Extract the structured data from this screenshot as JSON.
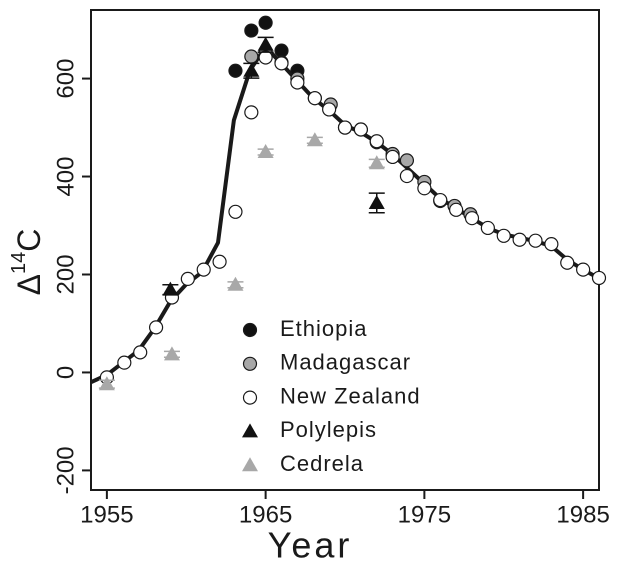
{
  "chart_data": {
    "type": "scatter",
    "x_label": "Year",
    "y_label": [
      "Δ",
      "14",
      "C"
    ],
    "xlim": [
      1954,
      1986
    ],
    "ylim": [
      -240,
      740
    ],
    "xticks": [
      1955,
      1965,
      1975,
      1985
    ],
    "yticks": [
      -200,
      0,
      200,
      400,
      600
    ],
    "curve": {
      "color": "#1a1a1a",
      "x": [
        1954,
        1955,
        1956,
        1957,
        1958,
        1959,
        1960,
        1961,
        1962,
        1963,
        1964,
        1965,
        1966,
        1967,
        1968,
        1969,
        1970,
        1971,
        1972,
        1973,
        1974,
        1975,
        1976,
        1977,
        1978,
        1979,
        1980,
        1981,
        1982,
        1983,
        1984,
        1985,
        1986
      ],
      "values": [
        -20,
        -5,
        20,
        45,
        90,
        145,
        180,
        205,
        265,
        515,
        616,
        665,
        630,
        595,
        560,
        535,
        505,
        490,
        470,
        445,
        415,
        385,
        355,
        335,
        315,
        295,
        282,
        275,
        268,
        258,
        230,
        210,
        192
      ]
    },
    "series": [
      {
        "name": "Ethiopia",
        "marker": "circle",
        "color": "#111111",
        "x": [
          1963.1,
          1964.1,
          1965.0,
          1966.0,
          1967.0
        ],
        "values": [
          616,
          698,
          714,
          657,
          616
        ]
      },
      {
        "name": "Madagascar",
        "marker": "circle",
        "color": "#a8a8a8",
        "x": [
          1964.1,
          1965.0,
          1966.0,
          1967.0,
          1968.1,
          1969.1,
          1970.0,
          1971.0,
          1972.0,
          1973.0,
          1973.9,
          1975.0,
          1976.0,
          1976.9,
          1977.9
        ],
        "values": [
          645,
          653,
          633,
          600,
          560,
          547,
          500,
          496,
          470,
          446,
          433,
          389,
          350,
          340,
          323
        ]
      },
      {
        "name": "New Zealand",
        "marker": "circle",
        "color": "#ffffff",
        "x": [
          1955.0,
          1956.1,
          1957.1,
          1958.1,
          1959.1,
          1960.1,
          1961.1,
          1962.1,
          1963.1,
          1964.1,
          1965.0,
          1966.0,
          1967.0,
          1968.1,
          1969.0,
          1970.0,
          1971.0,
          1972.0,
          1973.0,
          1973.9,
          1975.0,
          1976.0,
          1977.0,
          1978.0,
          1979.0,
          1980.0,
          1981.0,
          1982.0,
          1983.0,
          1984.0,
          1985.0,
          1986.0
        ],
        "values": [
          -10,
          20,
          41,
          92,
          153,
          191,
          210,
          226,
          328,
          531,
          643,
          631,
          592,
          560,
          537,
          500,
          496,
          472,
          440,
          401,
          376,
          352,
          332,
          315,
          295,
          279,
          271,
          269,
          262,
          224,
          210,
          193
        ]
      },
      {
        "name": "Polylepis",
        "marker": "triangle",
        "color": "#111111",
        "x": [
          1959.0,
          1964.1,
          1965.0,
          1972.0
        ],
        "values": [
          169,
          616,
          669,
          346
        ],
        "errors": [
          10,
          15,
          15,
          20
        ]
      },
      {
        "name": "Cedrela",
        "marker": "triangle",
        "color": "#a8a8a8",
        "x": [
          1955.0,
          1959.1,
          1963.1,
          1965.0,
          1968.1,
          1972.0
        ],
        "values": [
          -24,
          37,
          179,
          450,
          474,
          427
        ],
        "errors": [
          8,
          6,
          6,
          6,
          6,
          8
        ]
      }
    ]
  }
}
